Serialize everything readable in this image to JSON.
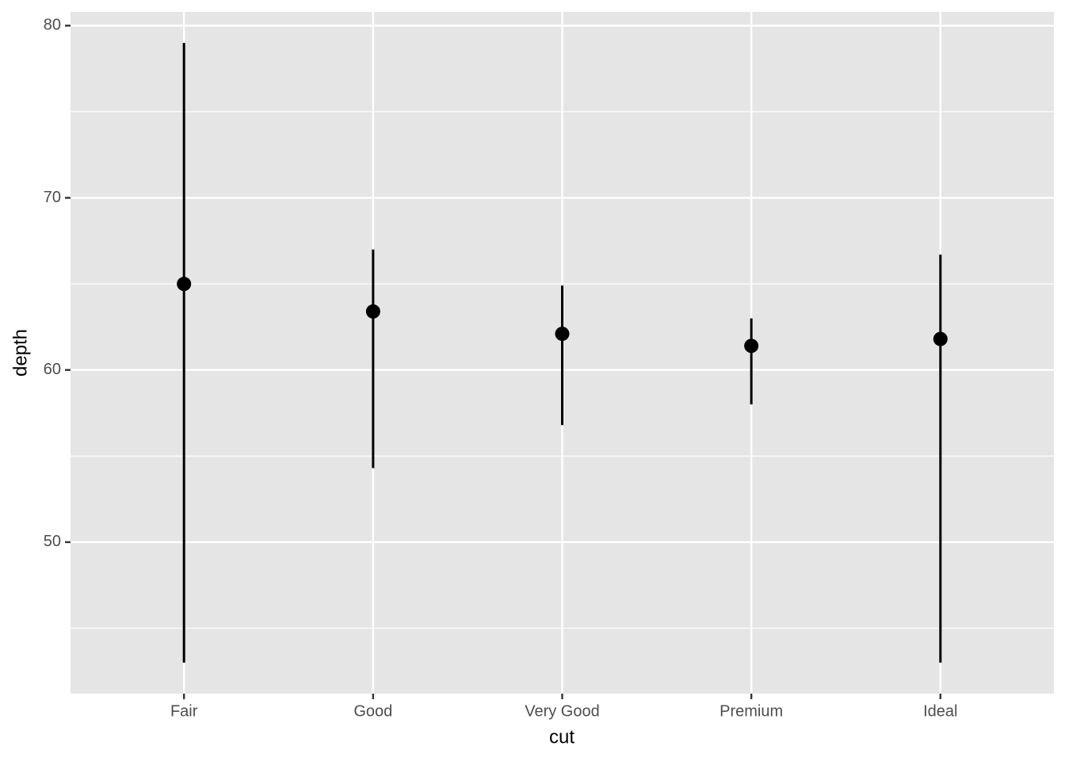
{
  "chart_data": {
    "type": "pointrange",
    "x_label": "cut",
    "y_label": "depth",
    "categories": [
      "Fair",
      "Good",
      "Very Good",
      "Premium",
      "Ideal"
    ],
    "values": [
      65.0,
      63.4,
      62.1,
      61.4,
      61.8
    ],
    "lower": [
      43.0,
      54.3,
      56.8,
      58.0,
      43.0
    ],
    "upper": [
      79.0,
      67.0,
      64.9,
      63.0,
      66.7
    ],
    "color": "#000000",
    "ylim": [
      41.2,
      80.8
    ],
    "yticks": [
      50,
      60,
      70,
      80
    ],
    "minor_yticks": [
      45,
      55,
      65,
      75
    ],
    "grid": true
  }
}
